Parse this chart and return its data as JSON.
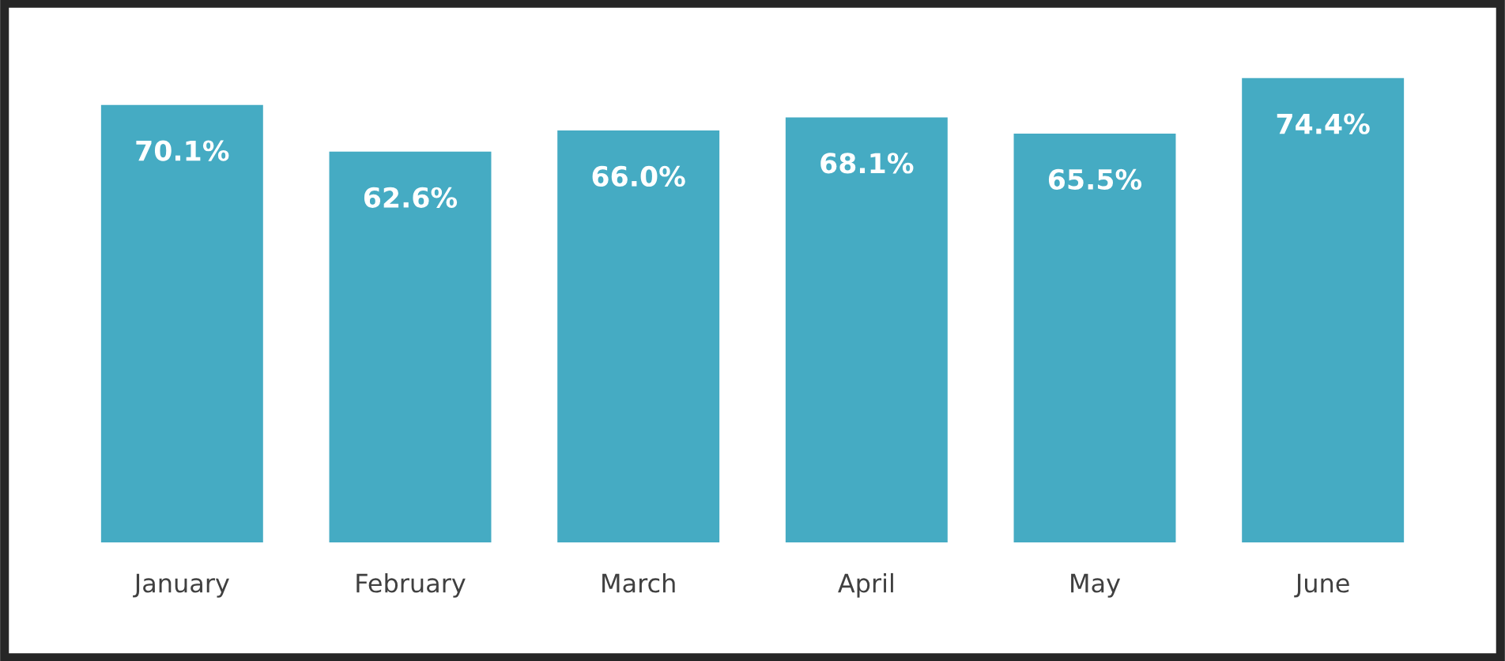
{
  "chart_data": {
    "type": "bar",
    "categories": [
      "January",
      "February",
      "March",
      "April",
      "May",
      "June"
    ],
    "values": [
      70.1,
      62.6,
      66.0,
      68.1,
      65.5,
      74.4
    ],
    "value_labels": [
      "70.1%",
      "62.6%",
      "66.0%",
      "68.1%",
      "65.5%",
      "74.4%"
    ],
    "color": "#45abc3",
    "tick_labels": "x",
    "grid": false,
    "legend": false
  }
}
